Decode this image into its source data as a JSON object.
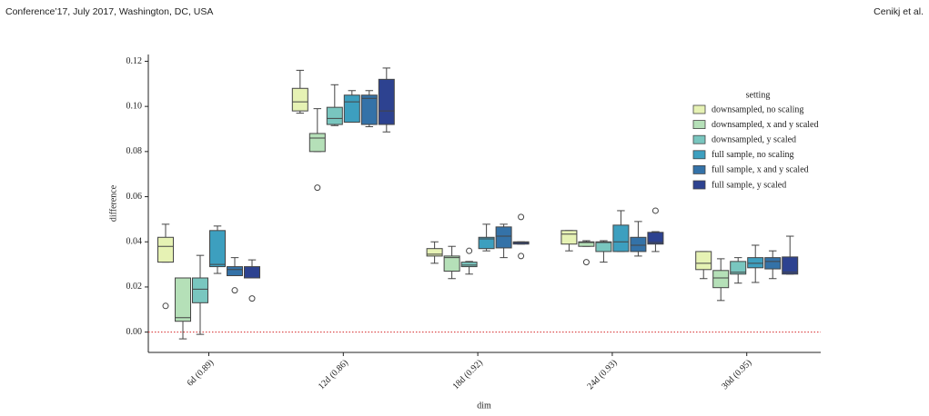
{
  "header": {
    "left": "Conference’17, July 2017, Washington, DC, USA",
    "right": "Cenikj et al."
  },
  "chart_data": {
    "type": "box",
    "xlabel": "dim",
    "ylabel": "difference",
    "categories": [
      "6d (0.89)",
      "12d (0.86)",
      "18d (0.92)",
      "24d (0.93)",
      "30d (0.95)"
    ],
    "ylim": [
      -0.009,
      0.123
    ],
    "yticks": [
      {
        "value": 0,
        "label": "0.00"
      },
      {
        "value": 0.02,
        "label": "0.02"
      },
      {
        "value": 0.04,
        "label": "0.04"
      },
      {
        "value": 0.06,
        "label": "0.06"
      },
      {
        "value": 0.08,
        "label": "0.08"
      },
      {
        "value": 0.1,
        "label": "0.10"
      },
      {
        "value": 0.12,
        "label": "0.12"
      }
    ],
    "hline": {
      "y": 0,
      "color": "#d62728"
    },
    "legend_title": "setting",
    "legend": "upper right",
    "series": [
      {
        "name": "downsampled, no scaling",
        "color": "#e6f2b4",
        "boxes": [
          {
            "whislo": 0.031,
            "q1": 0.031,
            "med": 0.038,
            "q3": 0.042,
            "whishi": 0.0478,
            "fliers": [
              0.0116
            ]
          },
          {
            "whislo": 0.097,
            "q1": 0.098,
            "med": 0.102,
            "q3": 0.108,
            "whishi": 0.116
          },
          {
            "whislo": 0.0305,
            "q1": 0.0337,
            "med": 0.0345,
            "q3": 0.037,
            "whishi": 0.04
          },
          {
            "whislo": 0.036,
            "q1": 0.039,
            "med": 0.0434,
            "q3": 0.045,
            "whishi": 0.045
          },
          {
            "whislo": 0.0237,
            "q1": 0.0277,
            "med": 0.0305,
            "q3": 0.0357,
            "whishi": 0.0357
          }
        ]
      },
      {
        "name": "downsampled, x and y scaled",
        "color": "#b5e0b8",
        "boxes": [
          {
            "whislo": -0.003,
            "q1": 0.0048,
            "med": 0.0064,
            "q3": 0.024,
            "whishi": 0.024
          },
          {
            "whislo": 0.08,
            "q1": 0.08,
            "med": 0.086,
            "q3": 0.088,
            "whishi": 0.099,
            "fliers": [
              0.064
            ]
          },
          {
            "whislo": 0.0237,
            "q1": 0.027,
            "med": 0.033,
            "q3": 0.0337,
            "whishi": 0.038
          },
          {
            "whislo": 0.038,
            "q1": 0.038,
            "med": 0.0397,
            "q3": 0.04,
            "whishi": 0.0405,
            "fliers": [
              0.031
            ]
          },
          {
            "whislo": 0.014,
            "q1": 0.0197,
            "med": 0.024,
            "q3": 0.0273,
            "whishi": 0.0325
          }
        ]
      },
      {
        "name": "downsampled, y scaled",
        "color": "#79c6bf",
        "boxes": [
          {
            "whislo": -0.001,
            "q1": 0.013,
            "med": 0.019,
            "q3": 0.024,
            "whishi": 0.034
          },
          {
            "whislo": 0.0915,
            "q1": 0.092,
            "med": 0.0947,
            "q3": 0.0996,
            "whishi": 0.1096
          },
          {
            "whislo": 0.0257,
            "q1": 0.029,
            "med": 0.0297,
            "q3": 0.031,
            "whishi": 0.0313,
            "fliers": [
              0.036
            ]
          },
          {
            "whislo": 0.031,
            "q1": 0.0357,
            "med": 0.0397,
            "q3": 0.04,
            "whishi": 0.0405
          },
          {
            "whislo": 0.0217,
            "q1": 0.0257,
            "med": 0.0265,
            "q3": 0.0313,
            "whishi": 0.033
          }
        ]
      },
      {
        "name": "full sample, no scaling",
        "color": "#3d9fbf",
        "boxes": [
          {
            "whislo": 0.026,
            "q1": 0.029,
            "med": 0.03,
            "q3": 0.045,
            "whishi": 0.047
          },
          {
            "whislo": 0.093,
            "q1": 0.093,
            "med": 0.102,
            "q3": 0.105,
            "whishi": 0.107
          },
          {
            "whislo": 0.036,
            "q1": 0.037,
            "med": 0.0413,
            "q3": 0.042,
            "whishi": 0.0478
          },
          {
            "whislo": 0.0357,
            "q1": 0.0357,
            "med": 0.04,
            "q3": 0.0474,
            "whishi": 0.0538
          },
          {
            "whislo": 0.022,
            "q1": 0.0285,
            "med": 0.0305,
            "q3": 0.033,
            "whishi": 0.0385
          }
        ]
      },
      {
        "name": "full sample, x and y scaled",
        "color": "#3472a8",
        "boxes": [
          {
            "whislo": 0.025,
            "q1": 0.025,
            "med": 0.0277,
            "q3": 0.029,
            "whishi": 0.033,
            "fliers": [
              0.0185
            ]
          },
          {
            "whislo": 0.091,
            "q1": 0.092,
            "med": 0.1036,
            "q3": 0.105,
            "whishi": 0.107
          },
          {
            "whislo": 0.033,
            "q1": 0.0373,
            "med": 0.0425,
            "q3": 0.0466,
            "whishi": 0.0478
          },
          {
            "whislo": 0.0337,
            "q1": 0.0357,
            "med": 0.0385,
            "q3": 0.042,
            "whishi": 0.049
          },
          {
            "whislo": 0.0237,
            "q1": 0.028,
            "med": 0.0313,
            "q3": 0.033,
            "whishi": 0.036
          }
        ]
      },
      {
        "name": "full sample, y scaled",
        "color": "#2d4290",
        "boxes": [
          {
            "whislo": 0.024,
            "q1": 0.024,
            "med": 0.024,
            "q3": 0.029,
            "whishi": 0.032,
            "fliers": [
              0.0149
            ]
          },
          {
            "whislo": 0.0887,
            "q1": 0.092,
            "med": 0.098,
            "q3": 0.112,
            "whishi": 0.117
          },
          {
            "whislo": 0.039,
            "q1": 0.039,
            "med": 0.0397,
            "q3": 0.04,
            "whishi": 0.04,
            "fliers": [
              0.051,
              0.0337
            ]
          },
          {
            "whislo": 0.0357,
            "q1": 0.039,
            "med": 0.0397,
            "q3": 0.0442,
            "whishi": 0.0445,
            "fliers": [
              0.0538
            ]
          },
          {
            "whislo": 0.0257,
            "q1": 0.0257,
            "med": 0.0265,
            "q3": 0.0333,
            "whishi": 0.0425
          }
        ]
      }
    ]
  }
}
